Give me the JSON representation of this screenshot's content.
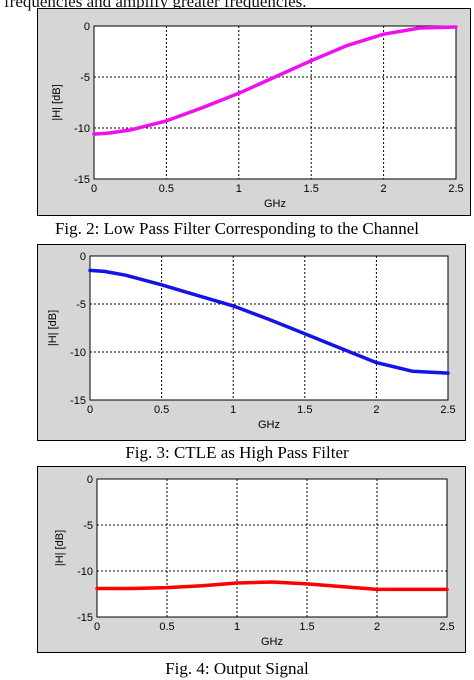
{
  "page": {
    "top_text": "frequencies and amplify greater frequencies.",
    "captions": [
      "Fig. 2: Low Pass Filter Corresponding to the Channel",
      "Fig. 3: CTLE as High Pass Filter",
      "Fig. 4: Output Signal"
    ]
  },
  "chart_data": [
    {
      "type": "line",
      "title": "",
      "xlabel": "GHz",
      "ylabel": "|H| [dB]",
      "xlim": [
        0,
        2.5
      ],
      "ylim": [
        -15,
        0
      ],
      "xticks": [
        "0",
        "0.5",
        "1",
        "1.5",
        "2",
        "2.5"
      ],
      "yticks": [
        "0",
        "-5",
        "-10",
        "-15"
      ],
      "grid": true,
      "series": [
        {
          "color": "#ee10ee",
          "x": [
            0,
            0.1,
            0.25,
            0.5,
            0.75,
            1.0,
            1.25,
            1.5,
            1.75,
            2.0,
            2.25,
            2.5
          ],
          "y": [
            -10.6,
            -10.5,
            -10.2,
            -9.3,
            -8.0,
            -6.6,
            -5.0,
            -3.4,
            -1.9,
            -0.8,
            -0.2,
            -0.1
          ]
        }
      ]
    },
    {
      "type": "line",
      "title": "",
      "xlabel": "GHz",
      "ylabel": "|H| [dB]",
      "xlim": [
        0,
        2.5
      ],
      "ylim": [
        -15,
        0
      ],
      "xticks": [
        "0",
        "0.5",
        "1",
        "1.5",
        "2",
        "2.5"
      ],
      "yticks": [
        "0",
        "-5",
        "-10",
        "-15"
      ],
      "grid": true,
      "series": [
        {
          "color": "#1414e6",
          "x": [
            0,
            0.1,
            0.25,
            0.5,
            0.75,
            1.0,
            1.25,
            1.5,
            1.75,
            2.0,
            2.25,
            2.5
          ],
          "y": [
            -1.5,
            -1.6,
            -2.0,
            -3.0,
            -4.1,
            -5.2,
            -6.6,
            -8.1,
            -9.6,
            -11.1,
            -12.0,
            -12.2
          ]
        }
      ]
    },
    {
      "type": "line",
      "title": "",
      "xlabel": "GHz",
      "ylabel": "|H| [dB]",
      "xlim": [
        0,
        2.5
      ],
      "ylim": [
        -15,
        0
      ],
      "xticks": [
        "0",
        "0.5",
        "1",
        "1.5",
        "2",
        "2.5"
      ],
      "yticks": [
        "0",
        "-5",
        "-10",
        "-15"
      ],
      "grid": true,
      "series": [
        {
          "color": "#ff0000",
          "x": [
            0,
            0.25,
            0.5,
            0.75,
            1.0,
            1.25,
            1.5,
            1.75,
            2.0,
            2.25,
            2.5
          ],
          "y": [
            -11.9,
            -11.9,
            -11.8,
            -11.6,
            -11.3,
            -11.2,
            -11.4,
            -11.7,
            -12.0,
            -12.0,
            -12.0
          ]
        }
      ]
    }
  ]
}
